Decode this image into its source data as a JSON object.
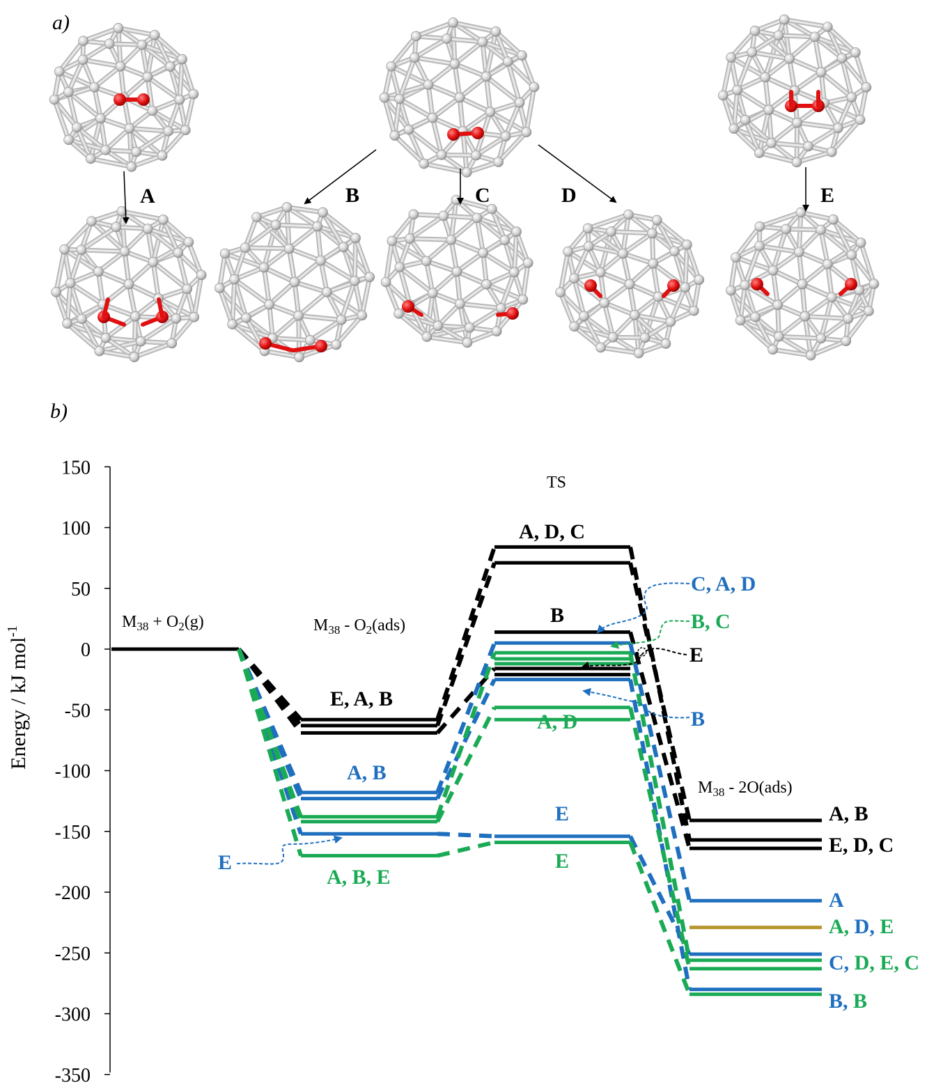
{
  "colors": {
    "black": "#000000",
    "blue": "#1f6fbf",
    "green": "#1aaa55",
    "gold": "#b8962e",
    "red": "#e01010",
    "atom": "#d4d4d4"
  },
  "panel_a": {
    "label": "a)",
    "top_clusters": [
      {
        "id": "top-left"
      },
      {
        "id": "top-center"
      },
      {
        "id": "top-right"
      }
    ],
    "bottom_clusters": [
      {
        "id": "A"
      },
      {
        "id": "B"
      },
      {
        "id": "C"
      },
      {
        "id": "D"
      },
      {
        "id": "E"
      }
    ],
    "arrow_labels": [
      "A",
      "B",
      "C",
      "D",
      "E"
    ]
  },
  "panel_b": {
    "label": "b)",
    "ylabel": "Energy / kJ mol",
    "ylabel_sup": "-1",
    "ticks": [
      "150",
      "100",
      "50",
      "0",
      "-50",
      "-100",
      "-150",
      "-200",
      "-250",
      "-300",
      "-350"
    ],
    "state_labels": {
      "gas_main": "M",
      "gas_sub": "38",
      "gas_rest": " + O",
      "gas_sub2": "2",
      "gas_end": "(g)",
      "ads_main": "M",
      "ads_sub": "38",
      "ads_rest": " - O",
      "ads_sub2": "2",
      "ads_end": "(ads)",
      "ts": "TS",
      "dis_main": "M",
      "dis_sub": "38",
      "dis_rest": " - 2O(ads)"
    },
    "labels": [
      {
        "text": "E, A, B",
        "color": "black"
      },
      {
        "text": "A, B",
        "color": "blue"
      },
      {
        "text": "A, B, E",
        "color": "green"
      },
      {
        "text": "E",
        "color": "blue"
      },
      {
        "text": "A, D, C",
        "color": "black"
      },
      {
        "text": "B",
        "color": "black"
      },
      {
        "text": "A, D",
        "color": "green"
      },
      {
        "text": "E",
        "color": "blue"
      },
      {
        "text": "E",
        "color": "green"
      },
      {
        "text": "C, A, D",
        "color": "blue"
      },
      {
        "text": "B, C",
        "color": "green"
      },
      {
        "text": "E",
        "color": "black"
      },
      {
        "text": "B",
        "color": "blue"
      },
      {
        "text": "A, B",
        "color": "black"
      },
      {
        "text": "E, D, C",
        "color": "black"
      },
      {
        "text": "A",
        "color": "blue"
      },
      {
        "text": "A, D, E",
        "color": "blue"
      },
      {
        "text": "C, D, E, C",
        "color": "blue"
      },
      {
        "text": "B, B",
        "color": "blue"
      }
    ],
    "levels": {
      "gas": [
        0
      ],
      "ads_black": [
        -58,
        -63,
        -69
      ],
      "ads_blue": [
        -118,
        -123,
        -152
      ],
      "ads_green": [
        -138,
        -142,
        -170
      ],
      "ts_black": [
        84,
        71,
        14,
        -16,
        -21
      ],
      "ts_blue": [
        5,
        -25,
        -154
      ],
      "ts_green": [
        -3,
        -8,
        -12,
        -48,
        -58,
        -159
      ],
      "dis_black": [
        -141,
        -157,
        -164
      ],
      "dis_blue": [
        -207,
        -251,
        -280
      ],
      "dis_gold": [
        -229
      ],
      "dis_green": [
        -256,
        -263,
        -284
      ]
    }
  }
}
